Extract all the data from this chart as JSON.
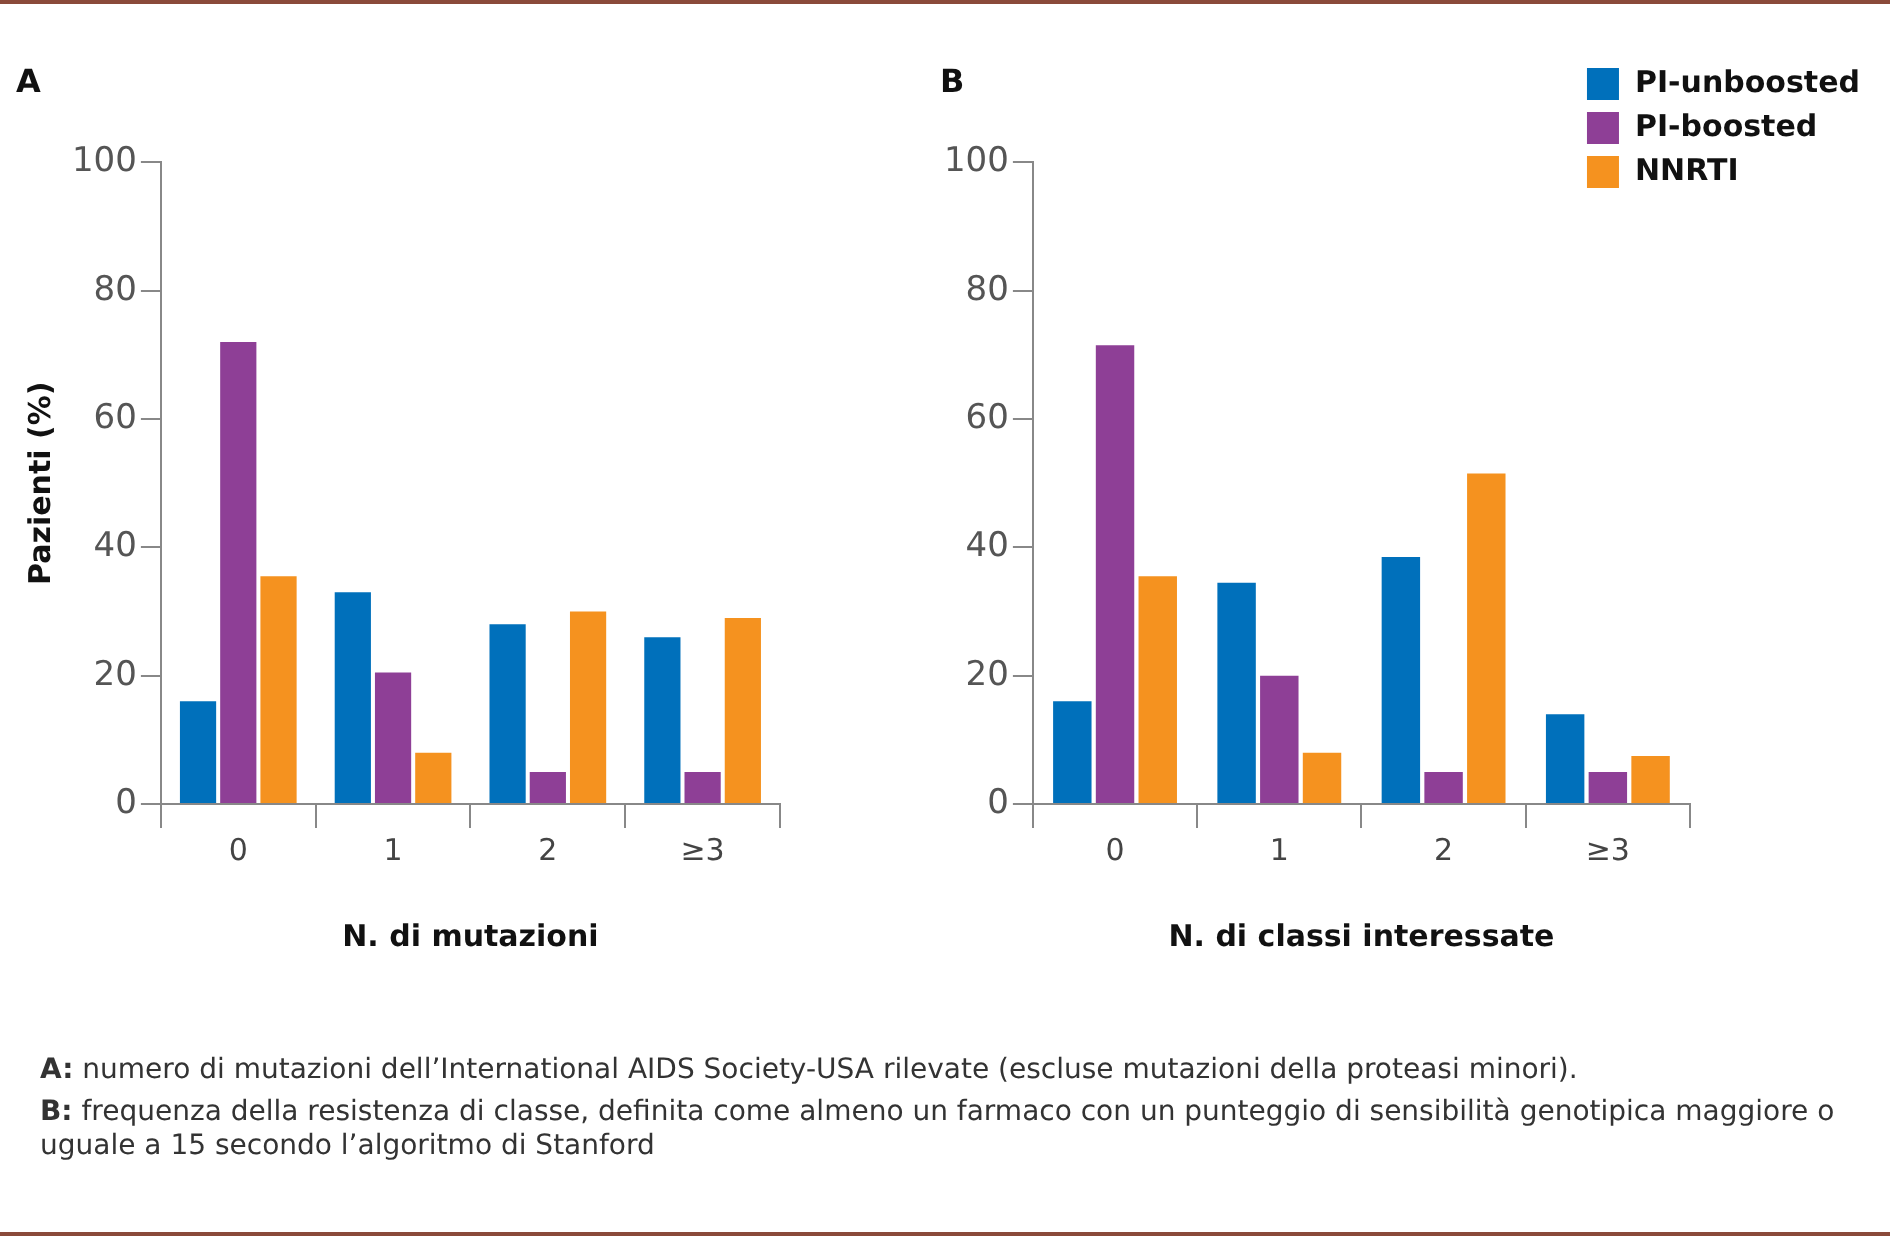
{
  "chart_data": [
    {
      "type": "bar",
      "title": "A",
      "xlabel": "N. di mutazioni",
      "ylabel": "Pazienti (%)",
      "categories": [
        "0",
        "1",
        "2",
        "≥3"
      ],
      "ylim": [
        0,
        100
      ],
      "yticks": [
        0,
        20,
        40,
        60,
        80,
        100
      ],
      "grid": false,
      "legend": false,
      "series": [
        {
          "color": "#0070bb",
          "values": [
            16,
            33,
            28,
            26
          ]
        },
        {
          "color": "#8e3f96",
          "values": [
            72,
            20.5,
            5,
            5
          ]
        },
        {
          "color": "#f5921f",
          "values": [
            35.5,
            8,
            30,
            29
          ]
        }
      ],
      "annotations": [
        "A: numero di mutazioni dell’International AIDS Society-USA rilevate (escluse mutazioni della proteasi minori)."
      ]
    },
    {
      "type": "bar",
      "title": "B",
      "xlabel": "N. di classi interessate",
      "categories": [
        "0",
        "1",
        "2",
        "≥3"
      ],
      "ylim": [
        0,
        100
      ],
      "yticks": [
        0,
        20,
        40,
        60,
        80,
        100
      ],
      "grid": false,
      "legend": "top right",
      "series": [
        {
          "name": "PI-unboosted",
          "color": "#0070bb",
          "values": [
            16,
            34.5,
            38.5,
            14
          ]
        },
        {
          "name": "PI-boosted",
          "color": "#8e3f96",
          "values": [
            71.5,
            20,
            5,
            5
          ]
        },
        {
          "name": "NNRTI",
          "color": "#f5921f",
          "values": [
            35.5,
            8,
            51.5,
            7.5
          ]
        }
      ],
      "annotations": [
        "B: frequenza della resistenza di classe, definita come almeno un farmaco con un punteggio di sensibilità genotipica maggiore o uguale a 15 secondo l’algoritmo di Stanford"
      ]
    }
  ]
}
